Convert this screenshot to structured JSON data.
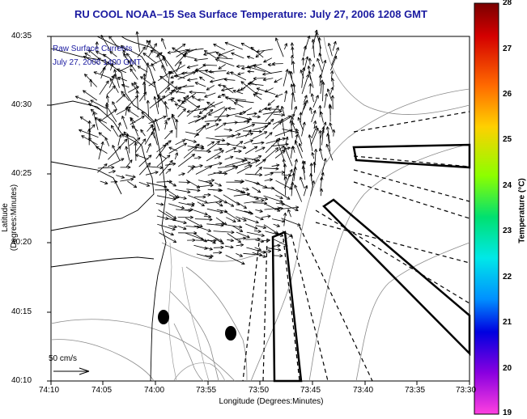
{
  "title": "RU COOL  NOAA–15  Sea Surface Temperature:  July 27, 2006 1208 GMT",
  "legend": {
    "line1": "Raw Surface Currents",
    "line2": "July 27, 2006 1400 GMT"
  },
  "axes": {
    "xlabel": "Longitude (Degrees:Minutes)",
    "ylabel": "Latitude (Degrees:Minutes)",
    "xticks": [
      "74:10",
      "74:05",
      "74:00",
      "73:55",
      "73:50",
      "73:45",
      "73:40",
      "73:35",
      "73:30"
    ],
    "yticks": [
      "40:35",
      "40:30",
      "40:25",
      "40:20",
      "40:15",
      "40:10"
    ]
  },
  "scale_arrow": {
    "label": "50 cm/s"
  },
  "colorbar": {
    "label": "Temperature (°C)",
    "ticks": [
      "28",
      "27",
      "26",
      "25",
      "24",
      "23",
      "22",
      "21",
      "20",
      "19"
    ],
    "min": 19,
    "max": 28
  },
  "colors": {
    "title": "#1a1aa0",
    "land_outline": "#000000",
    "contour": "#7a7a7a",
    "vector": "#000000"
  }
}
